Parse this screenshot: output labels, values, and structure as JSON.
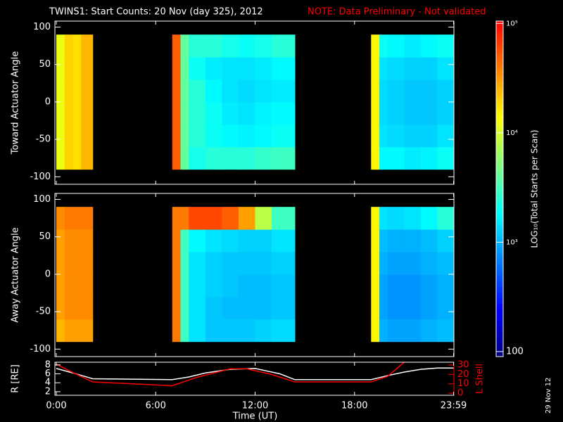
{
  "title": "TWINS1: Start Counts: 20 Nov (day 325), 2012",
  "note": "NOTE: Data Preliminary - Not validated",
  "date": "29 Nov 12",
  "colorbar": {
    "label": "LOG₁₀(Total Starts per Scan)",
    "scale": "log",
    "zlim": [
      90,
      105000
    ],
    "zticks": [
      100,
      {
        "value": 1000,
        "label": "10³"
      },
      {
        "value": 10000,
        "label": "10⁴"
      },
      {
        "value": 100000,
        "label": "10⁵"
      }
    ],
    "colorscale": [
      "#000080",
      "#0000ff",
      "#0080ff",
      "#00ffff",
      "#80ff80",
      "#ffff00",
      "#ff8000",
      "#ff0000"
    ]
  },
  "chart_data": [
    {
      "type": "heatmap",
      "ylabel": "Toward Actuator Angle",
      "xlim": [
        0,
        24
      ],
      "ylim": [
        -110,
        108
      ],
      "yticks": [
        -100,
        -50,
        0,
        50,
        100
      ],
      "x_edges": [
        0,
        0.5,
        1,
        1.5,
        2.2,
        7,
        7.5,
        8,
        9,
        10,
        11,
        12,
        13,
        14.4,
        19,
        19.5,
        20,
        21,
        22,
        23,
        24
      ],
      "y_edges": [
        -90,
        -60,
        -30,
        0,
        30,
        60,
        90
      ],
      "values": [
        [
          12000,
          12000,
          12000,
          12000,
          12000,
          12000
        ],
        [
          20000,
          20000,
          20000,
          20000,
          20000,
          20000
        ],
        [
          18000,
          18000,
          18000,
          18000,
          18000,
          18000
        ],
        [
          25000,
          25000,
          25000,
          25000,
          25000,
          25000
        ],
        null,
        [
          50000,
          50000,
          50000,
          50000,
          50000,
          50000
        ],
        [
          4000,
          4000,
          4000,
          4000,
          4000,
          4000
        ],
        [
          2200,
          2500,
          2500,
          2500,
          2000,
          2500
        ],
        [
          2500,
          2000,
          2000,
          1800,
          1600,
          2500
        ],
        [
          2500,
          1800,
          1600,
          1500,
          1500,
          2200
        ],
        [
          2500,
          1700,
          1500,
          1400,
          1500,
          2000
        ],
        [
          2800,
          1800,
          1700,
          1500,
          1600,
          2200
        ],
        [
          3000,
          2000,
          1800,
          1600,
          1800,
          2500
        ],
        null,
        [
          15000,
          15000,
          15000,
          15000,
          15000,
          15000
        ],
        [
          1800,
          1500,
          1400,
          1400,
          1500,
          2000
        ],
        [
          1800,
          1400,
          1300,
          1300,
          1400,
          1800
        ],
        [
          1600,
          1300,
          1200,
          1200,
          1300,
          1600
        ],
        [
          1700,
          1300,
          1200,
          1200,
          1300,
          1800
        ],
        [
          2000,
          1500,
          1300,
          1300,
          1500,
          2000
        ]
      ]
    },
    {
      "type": "heatmap",
      "ylabel": "Away Actuator Angle",
      "xlim": [
        0,
        24
      ],
      "ylim": [
        -110,
        108
      ],
      "yticks": [
        -100,
        -50,
        0,
        50,
        100
      ],
      "x_edges": [
        0,
        0.5,
        1,
        1.5,
        2.2,
        7,
        7.5,
        8,
        9,
        10,
        11,
        12,
        13,
        14.4,
        19,
        19.5,
        20,
        21,
        22,
        23,
        24
      ],
      "y_edges": [
        -90,
        -60,
        -30,
        0,
        30,
        60,
        90
      ],
      "values": [
        [
          25000,
          30000,
          30000,
          30000,
          30000,
          35000
        ],
        [
          30000,
          35000,
          35000,
          35000,
          35000,
          40000
        ],
        [
          30000,
          35000,
          35000,
          35000,
          35000,
          40000
        ],
        [
          30000,
          35000,
          35000,
          35000,
          35000,
          40000
        ],
        null,
        [
          40000,
          40000,
          40000,
          40000,
          40000,
          40000
        ],
        [
          3000,
          3000,
          3000,
          3000,
          3000,
          40000
        ],
        [
          1500,
          1500,
          1500,
          1500,
          1800,
          60000
        ],
        [
          1200,
          1200,
          1300,
          1300,
          1500,
          60000
        ],
        [
          1200,
          1100,
          1200,
          1200,
          1400,
          50000
        ],
        [
          1200,
          1100,
          1100,
          1200,
          1300,
          30000
        ],
        [
          1300,
          1100,
          1100,
          1200,
          1300,
          8000
        ],
        [
          1400,
          1200,
          1200,
          1300,
          1500,
          3000
        ],
        null,
        [
          15000,
          15000,
          15000,
          15000,
          15000,
          15000
        ],
        [
          1000,
          900,
          900,
          1000,
          1100,
          1500
        ],
        [
          900,
          800,
          800,
          900,
          1000,
          1400
        ],
        [
          900,
          800,
          800,
          900,
          1000,
          1500
        ],
        [
          1000,
          900,
          900,
          1000,
          1100,
          1800
        ],
        [
          1100,
          1000,
          1000,
          1100,
          1300,
          2500
        ]
      ]
    },
    {
      "type": "line",
      "xlabel": "Time (UT)",
      "ylabel": "R [RE]",
      "y2label": "L Shell",
      "xlim": [
        0,
        24
      ],
      "xticks": [
        {
          "value": 0,
          "label": "0:00"
        },
        {
          "value": 6,
          "label": "6:00"
        },
        {
          "value": 12,
          "label": "12:00"
        },
        {
          "value": 18,
          "label": "18:00"
        },
        {
          "value": 23.98,
          "label": "23:59"
        }
      ],
      "ylim": [
        1.2,
        8.6
      ],
      "yticks": [
        2,
        4,
        6,
        8
      ],
      "y2lim": [
        -2.2,
        33
      ],
      "y2ticks": [
        0,
        10,
        20,
        30
      ],
      "y2color": "#ff0000",
      "series": [
        {
          "color": "#ffffff",
          "x": [
            0,
            1,
            2.2,
            7,
            8,
            9,
            10.5,
            12,
            13.5,
            14.4,
            19,
            20,
            21,
            22,
            23,
            24
          ],
          "values": [
            7.2,
            6.2,
            4.9,
            4.7,
            5.3,
            6.2,
            7.0,
            7.2,
            6.0,
            4.7,
            4.7,
            5.6,
            6.4,
            7.0,
            7.3,
            7.3
          ]
        },
        {
          "color": "#ff0000",
          "axis": "y2",
          "x": [
            0,
            1,
            2.2,
            7,
            8.5,
            10.5,
            11.5,
            13,
            14.4,
            19,
            20,
            21
          ],
          "values": [
            31,
            22,
            12,
            8,
            17,
            26,
            26,
            20,
            12,
            12,
            18,
            33
          ]
        }
      ]
    }
  ]
}
